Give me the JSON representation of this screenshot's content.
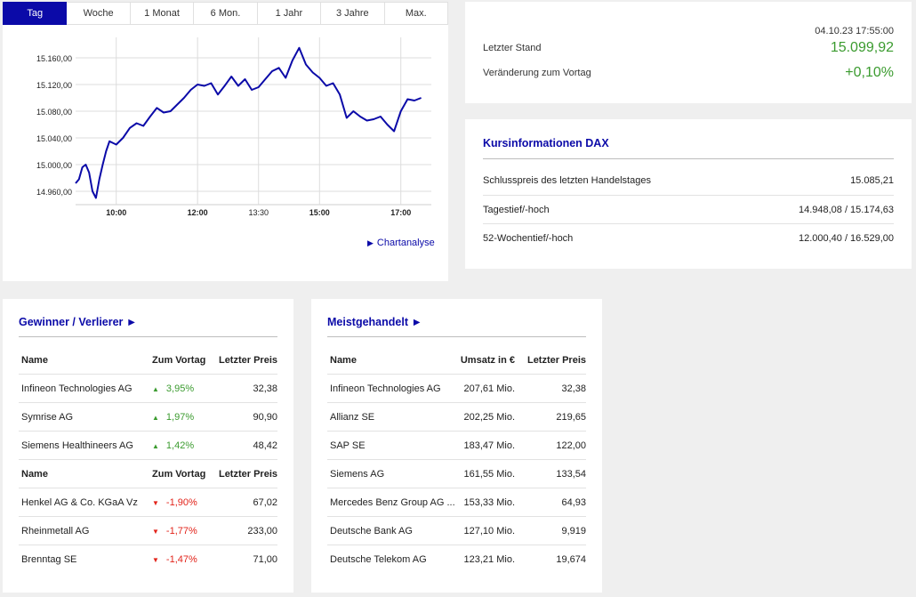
{
  "tabs": [
    "Tag",
    "Woche",
    "1 Monat",
    "6 Mon.",
    "1 Jahr",
    "3 Jahre",
    "Max."
  ],
  "active_tab": 0,
  "chart_link": "Chartanalyse",
  "chart_data": {
    "type": "line",
    "y_ticks": [
      "15.160,00",
      "15.120,00",
      "15.080,00",
      "15.040,00",
      "15.000,00",
      "14.960,00"
    ],
    "y_tick_values": [
      15160,
      15120,
      15080,
      15040,
      15000,
      14960
    ],
    "x_ticks": [
      "10:00",
      "12:00",
      "13:30",
      "15:00",
      "17:00"
    ],
    "x_tick_values": [
      "10:00",
      "12:00",
      "13:30",
      "15:00",
      "17:00"
    ],
    "ylim": [
      14940,
      15180
    ],
    "xlim": [
      "09:00",
      "17:45"
    ],
    "grid": true,
    "series": [
      {
        "color": "#0b0aa8",
        "x": [
          "09:00",
          "09:05",
          "09:10",
          "09:15",
          "09:20",
          "09:25",
          "09:30",
          "09:35",
          "09:40",
          "09:45",
          "09:50",
          "10:00",
          "10:10",
          "10:20",
          "10:30",
          "10:40",
          "10:50",
          "11:00",
          "11:10",
          "11:20",
          "11:30",
          "11:40",
          "11:50",
          "12:00",
          "12:10",
          "12:20",
          "12:30",
          "12:40",
          "12:50",
          "13:00",
          "13:10",
          "13:20",
          "13:30",
          "13:40",
          "13:50",
          "14:00",
          "14:10",
          "14:20",
          "14:30",
          "14:40",
          "14:50",
          "15:00",
          "15:10",
          "15:20",
          "15:30",
          "15:40",
          "15:50",
          "16:00",
          "16:10",
          "16:20",
          "16:30",
          "16:40",
          "16:50",
          "17:00",
          "17:10",
          "17:20",
          "17:30"
        ],
        "y": [
          14972,
          14978,
          14996,
          15000,
          14988,
          14960,
          14950,
          14978,
          15000,
          15020,
          15035,
          15030,
          15040,
          15055,
          15062,
          15058,
          15072,
          15085,
          15078,
          15080,
          15090,
          15100,
          15112,
          15120,
          15118,
          15122,
          15105,
          15118,
          15132,
          15118,
          15128,
          15112,
          15116,
          15128,
          15140,
          15145,
          15130,
          15156,
          15175,
          15150,
          15138,
          15130,
          15118,
          15122,
          15105,
          15070,
          15080,
          15072,
          15066,
          15068,
          15072,
          15060,
          15050,
          15080,
          15098,
          15096,
          15100
        ]
      }
    ]
  },
  "quote": {
    "timestamp": "04.10.23 17:55:00",
    "last_label": "Letzter Stand",
    "last_value": "15.099,92",
    "change_label": "Veränderung zum Vortag",
    "change_value": "+0,10%"
  },
  "info": {
    "title": "Kursinformationen DAX",
    "rows": [
      {
        "label": "Schlusspreis des letzten Handelstages",
        "value": "15.085,21"
      },
      {
        "label": "Tagestief/-hoch",
        "value": "14.948,08 / 15.174,63"
      },
      {
        "label": "52-Wochentief/-hoch",
        "value": "12.000,40 / 16.529,00"
      }
    ]
  },
  "gainers_losers": {
    "title": "Gewinner / Verlierer ►",
    "header": [
      "Name",
      "Zum Vortag",
      "Letzter Preis"
    ],
    "gainers": [
      {
        "name": "Infineon Technologies AG",
        "change": "3,95%",
        "price": "32,38"
      },
      {
        "name": "Symrise AG",
        "change": "1,97%",
        "price": "90,90"
      },
      {
        "name": "Siemens Healthineers AG",
        "change": "1,42%",
        "price": "48,42"
      }
    ],
    "losers": [
      {
        "name": "Henkel AG & Co. KGaA Vz",
        "change": "-1,90%",
        "price": "67,02"
      },
      {
        "name": "Rheinmetall AG",
        "change": "-1,77%",
        "price": "233,00"
      },
      {
        "name": "Brenntag SE",
        "change": "-1,47%",
        "price": "71,00"
      }
    ],
    "up_color": "#3b9b2f",
    "down_color": "#e2231a"
  },
  "most_traded": {
    "title": "Meistgehandelt ►",
    "header": [
      "Name",
      "Umsatz in €",
      "Letzter Preis"
    ],
    "rows": [
      {
        "name": "Infineon Technologies AG",
        "volume": "207,61 Mio.",
        "price": "32,38"
      },
      {
        "name": "Allianz SE",
        "volume": "202,25 Mio.",
        "price": "219,65"
      },
      {
        "name": "SAP SE",
        "volume": "183,47 Mio.",
        "price": "122,00"
      },
      {
        "name": "Siemens AG",
        "volume": "161,55 Mio.",
        "price": "133,54"
      },
      {
        "name": "Mercedes Benz Group AG ...",
        "volume": "153,33 Mio.",
        "price": "64,93"
      },
      {
        "name": "Deutsche Bank AG",
        "volume": "127,10 Mio.",
        "price": "9,919"
      },
      {
        "name": "Deutsche Telekom AG",
        "volume": "123,21 Mio.",
        "price": "19,674"
      }
    ]
  }
}
